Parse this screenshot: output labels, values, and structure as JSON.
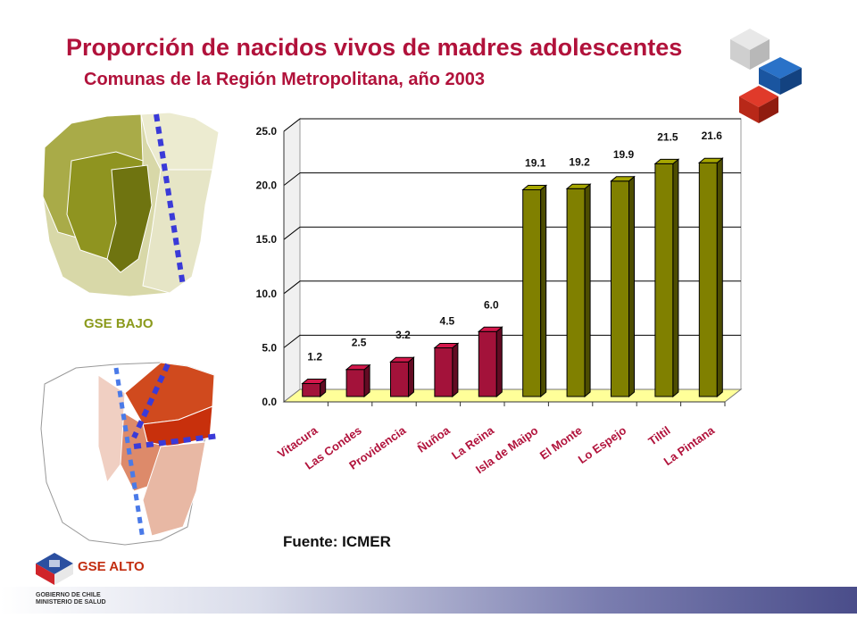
{
  "title": "Proporción de nacidos vivos de madres adolescentes",
  "subtitle": "Comunas de la Región Metropolitana, año 2003",
  "source": "Fuente: ICMER",
  "gse_bajo_label": "GSE BAJO",
  "gse_alto_label": "GSE ALTO",
  "footer": {
    "org_line1": "GOBIERNO DE CHILE",
    "org_line2": "MINISTERIO DE SALUD"
  },
  "colors": {
    "title": "#b1123b",
    "bar_low_gse_group": "#a3123a",
    "bar_high_gse_group": "#808000",
    "floor": "#ffff99"
  },
  "chart_data": {
    "type": "bar",
    "categories": [
      "Vitacura",
      "Las Condes",
      "Providencia",
      "Ñuñoa",
      "La Reina",
      "Isla de Maipo",
      "El Monte",
      "Lo Espejo",
      "Tiltil",
      "La Pintana"
    ],
    "values": [
      1.2,
      2.5,
      3.2,
      4.5,
      6.0,
      19.1,
      19.2,
      19.9,
      21.5,
      21.6
    ],
    "data_labels": [
      "1.2",
      "2.5",
      "3.2",
      "4.5",
      "6.0",
      "19.1",
      "19.2",
      "19.9",
      "21.5",
      "21.6"
    ],
    "ylim": [
      0,
      25
    ],
    "yticks": [
      "0.0",
      "5.0",
      "10.0",
      "15.0",
      "20.0",
      "25.0"
    ],
    "grid": true,
    "title": "",
    "xlabel": "",
    "ylabel": ""
  }
}
